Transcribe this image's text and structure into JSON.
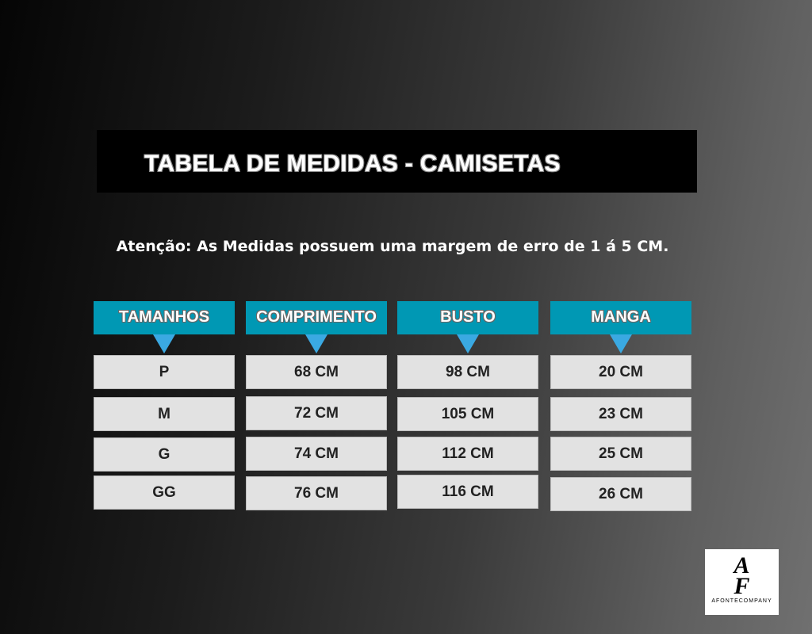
{
  "title": "TABELA DE MEDIDAS - CAMISETAS",
  "notice": "Atenção: As Medidas possuem uma margem de erro de 1 á 5 CM.",
  "columns": [
    {
      "header": "TAMANHOS",
      "values": [
        "P",
        "M",
        "G",
        "GG"
      ]
    },
    {
      "header": "COMPRIMENTO",
      "values": [
        "68 CM",
        "72 CM",
        "74 CM",
        "76 CM"
      ]
    },
    {
      "header": "BUSTO",
      "values": [
        "98 CM",
        "105 CM",
        "112  CM",
        "116 CM"
      ]
    },
    {
      "header": "MANGA",
      "values": [
        "20 CM",
        "23 CM",
        "25 CM",
        "26 CM"
      ]
    }
  ],
  "logo": {
    "mark": "AF",
    "name": "AFONTECOMPANY"
  },
  "colors": {
    "header": "#0098b4",
    "arrow": "#3aa9e2",
    "cell": "#e2e2e2"
  }
}
